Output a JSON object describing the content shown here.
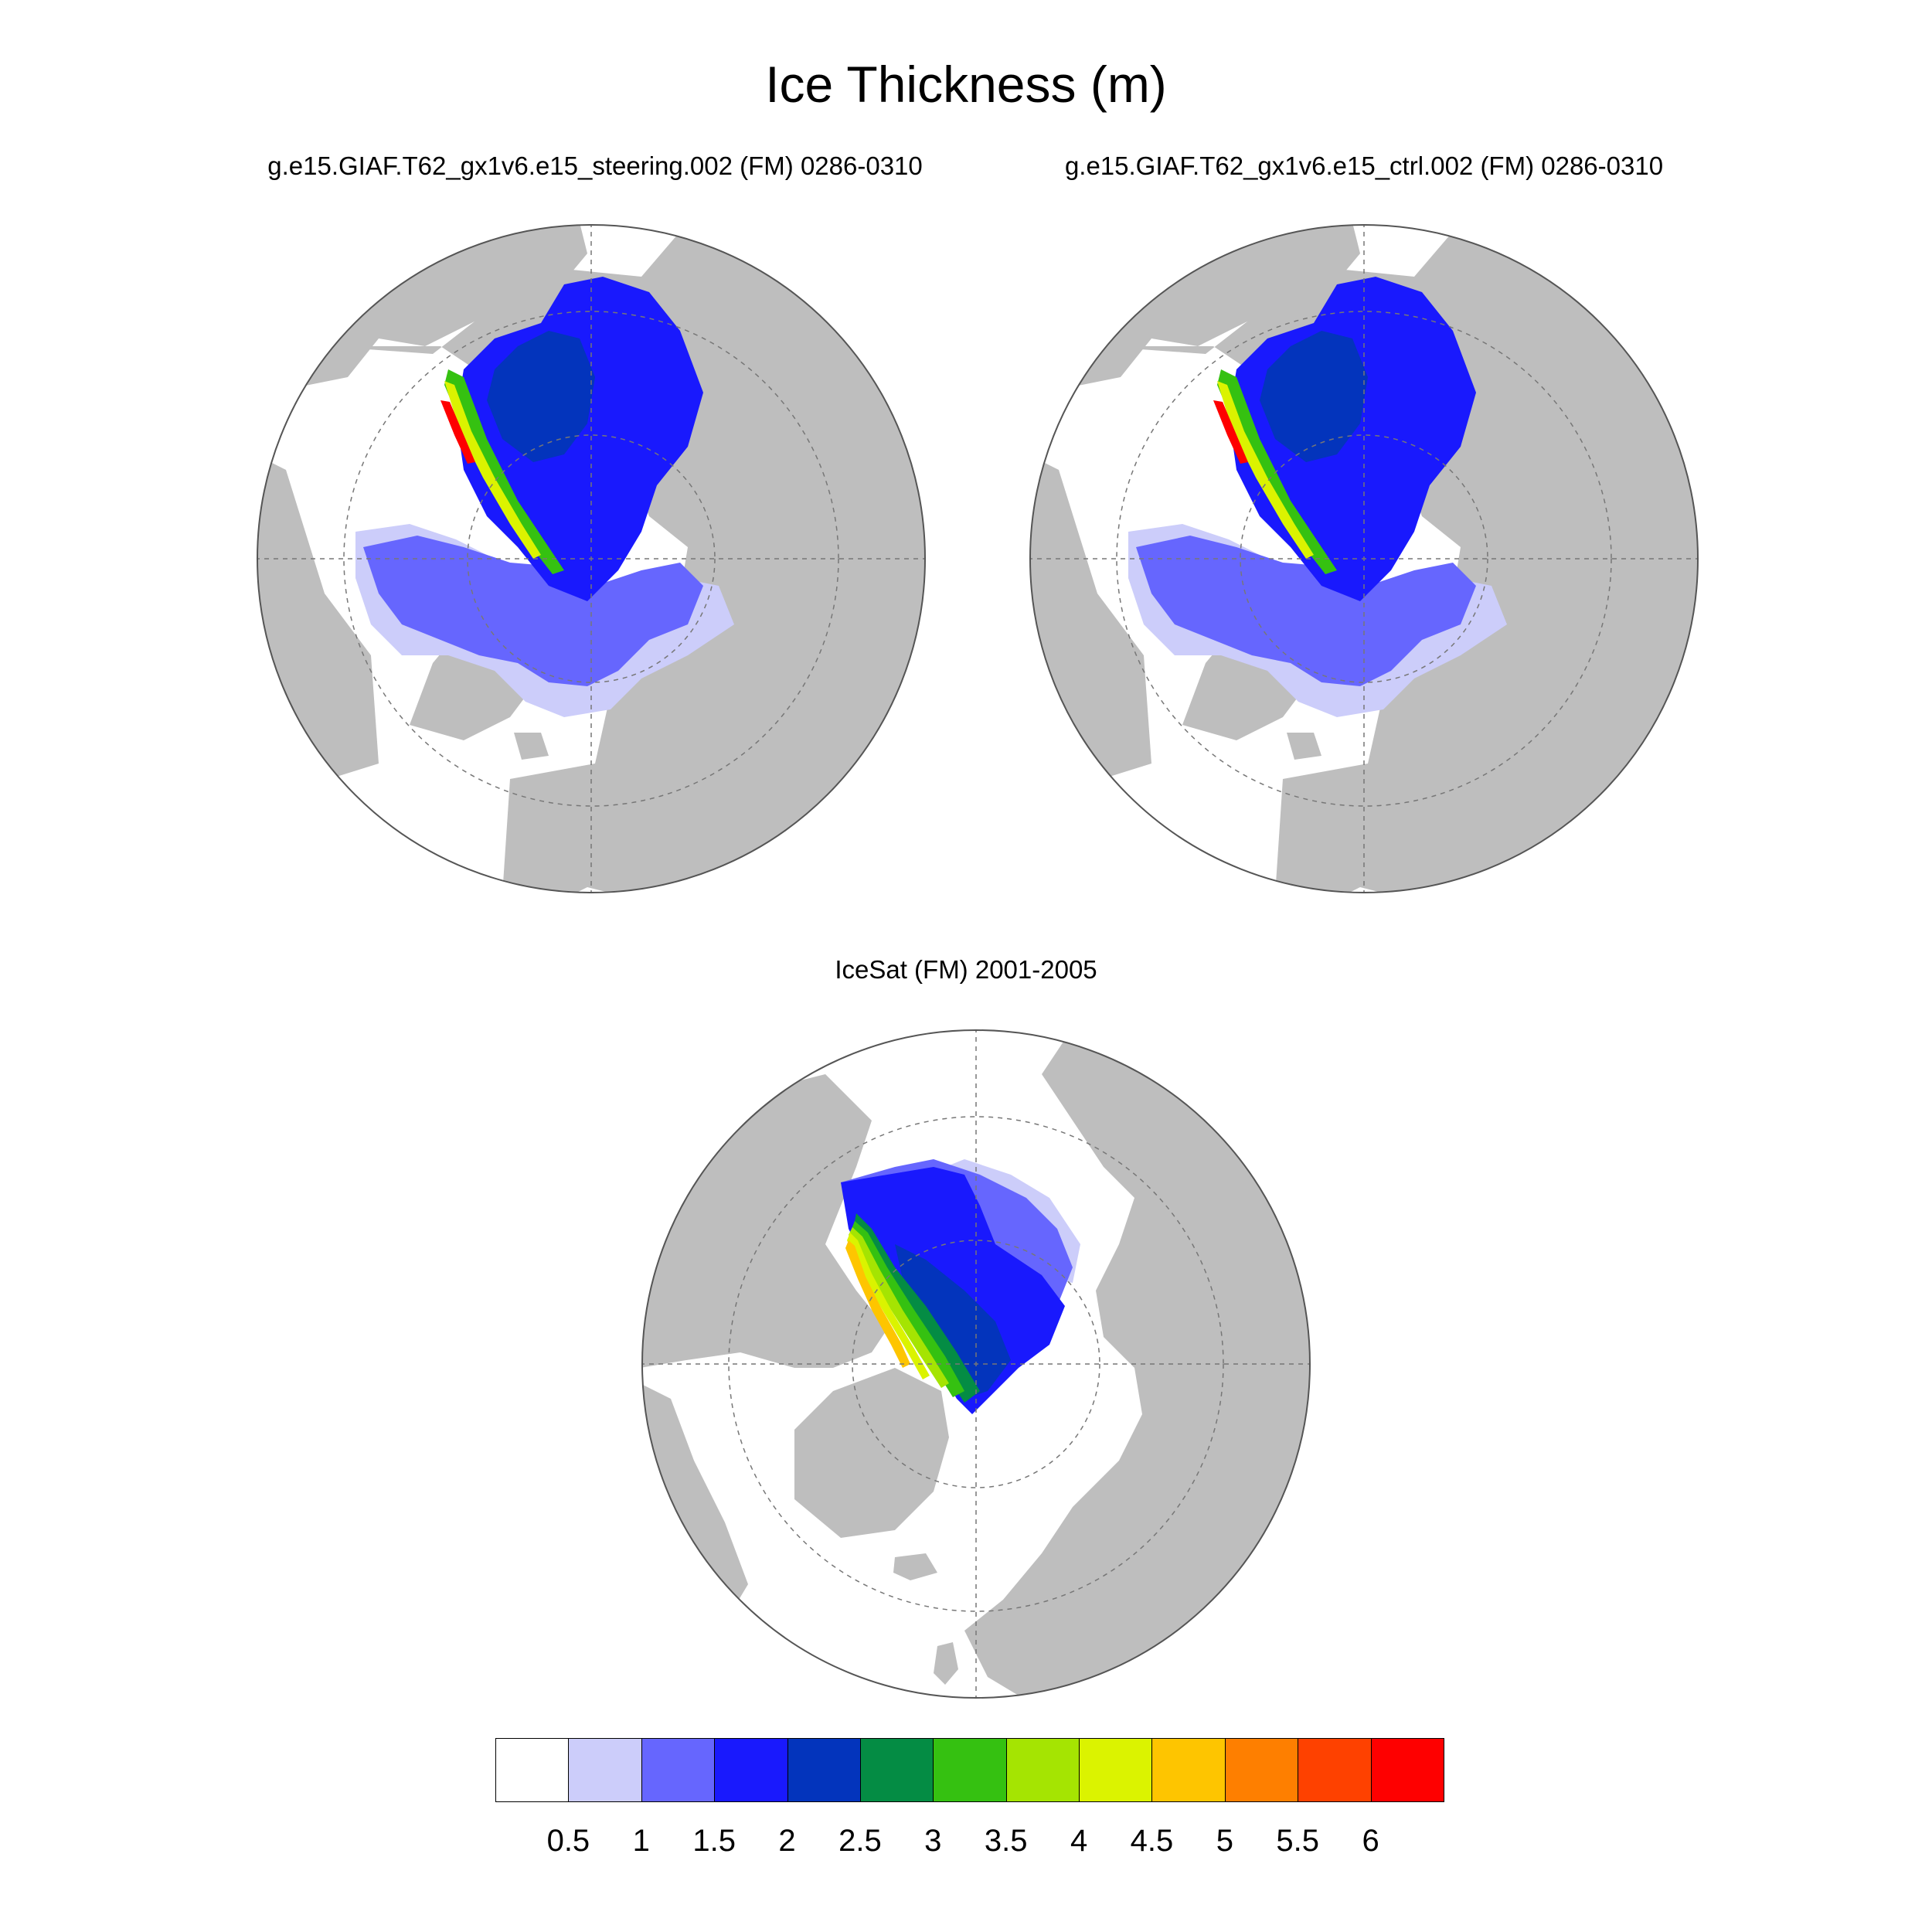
{
  "title": "Ice Thickness (m)",
  "panels": [
    {
      "id": "steering",
      "title": "g.e15.GIAF.T62_gx1v6.e15_steering.002 (FM) 0286-0310"
    },
    {
      "id": "ctrl",
      "title": "g.e15.GIAF.T62_gx1v6.e15_ctrl.002 (FM) 0286-0310"
    },
    {
      "id": "icesat",
      "title": "IceSat (FM) 2001-2005"
    }
  ],
  "colorbar": {
    "labels": [
      "0.5",
      "1",
      "1.5",
      "2",
      "2.5",
      "3",
      "3.5",
      "4",
      "4.5",
      "5",
      "5.5",
      "6"
    ],
    "colors": [
      "#ffffff",
      "#cccdfa",
      "#6666fe",
      "#1919fd",
      "#0334bc",
      "#048c44",
      "#35c111",
      "#a5e402",
      "#dbf300",
      "#fec500",
      "#fe7f00",
      "#fe4100",
      "#fe0000"
    ]
  },
  "colors": {
    "land": "#bebebe",
    "ocean": "#ffffff",
    "grid": "#777777"
  }
}
